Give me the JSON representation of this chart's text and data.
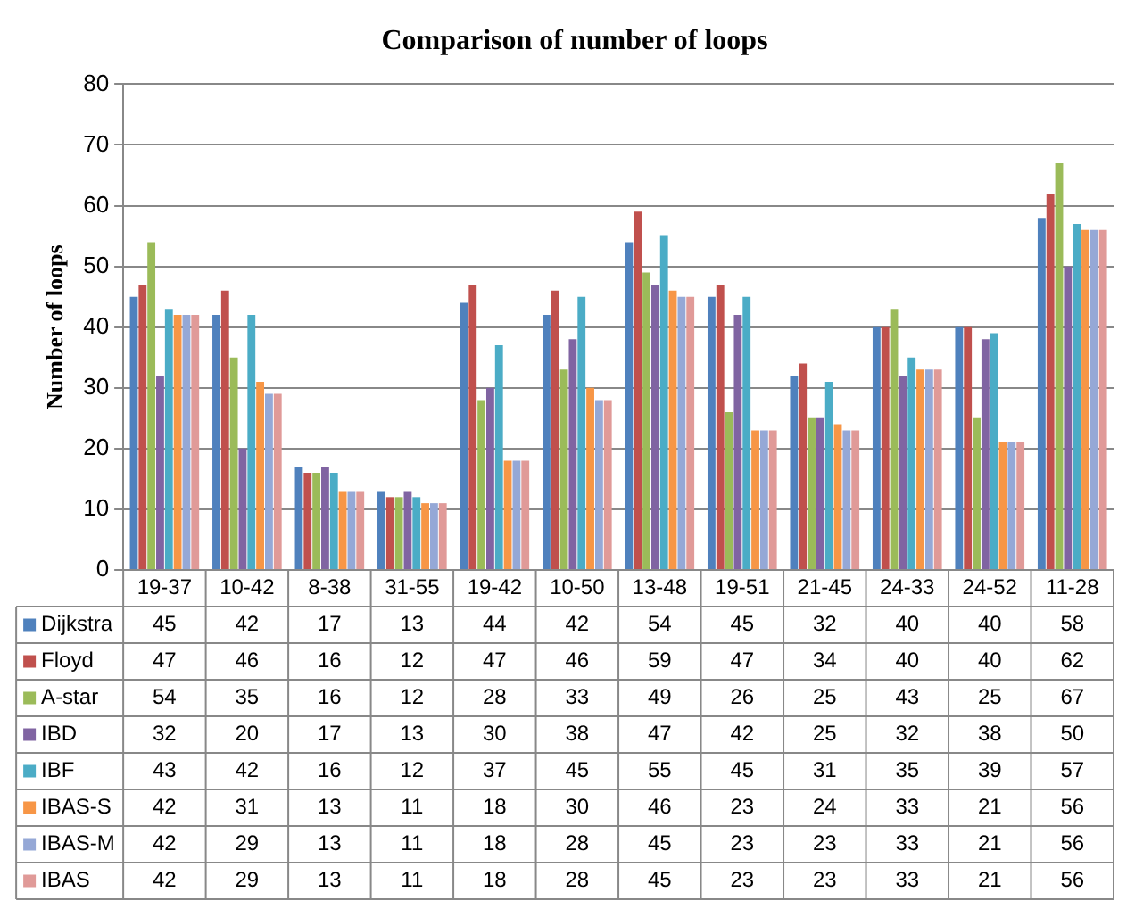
{
  "chart_data": {
    "type": "bar",
    "title": "Comparison of number of loops",
    "ylabel": "Number of loops",
    "categories": [
      "19-37",
      "10-42",
      "8-38",
      "31-55",
      "19-42",
      "10-50",
      "13-48",
      "19-51",
      "21-45",
      "24-33",
      "24-52",
      "11-28"
    ],
    "series": [
      {
        "name": "Dijkstra",
        "color": "#4f81bd",
        "values": [
          45,
          42,
          17,
          13,
          44,
          42,
          54,
          45,
          32,
          40,
          40,
          58
        ]
      },
      {
        "name": "Floyd",
        "color": "#c0504d",
        "values": [
          47,
          46,
          16,
          12,
          47,
          46,
          59,
          47,
          34,
          40,
          40,
          62
        ]
      },
      {
        "name": "A-star",
        "color": "#9bbb59",
        "values": [
          54,
          35,
          16,
          12,
          28,
          33,
          49,
          26,
          25,
          43,
          25,
          67
        ]
      },
      {
        "name": "IBD",
        "color": "#8064a2",
        "values": [
          32,
          20,
          17,
          13,
          30,
          38,
          47,
          42,
          25,
          32,
          38,
          50
        ]
      },
      {
        "name": "IBF",
        "color": "#4bacc6",
        "values": [
          43,
          42,
          16,
          12,
          37,
          45,
          55,
          45,
          31,
          35,
          39,
          57
        ]
      },
      {
        "name": "IBAS-S",
        "color": "#f79646",
        "values": [
          42,
          31,
          13,
          11,
          18,
          30,
          46,
          23,
          24,
          33,
          21,
          56
        ]
      },
      {
        "name": "IBAS-M",
        "color": "#95a8d6",
        "values": [
          42,
          29,
          13,
          11,
          18,
          28,
          45,
          23,
          23,
          33,
          21,
          56
        ]
      },
      {
        "name": "IBAS",
        "color": "#e09a98",
        "values": [
          42,
          29,
          13,
          11,
          18,
          28,
          45,
          23,
          23,
          33,
          21,
          56
        ]
      }
    ],
    "ylim": [
      0,
      80
    ],
    "yticks": [
      0,
      10,
      20,
      30,
      40,
      50,
      60,
      70,
      80
    ],
    "grid": "y",
    "legend": "bottom",
    "data_labels": true
  }
}
